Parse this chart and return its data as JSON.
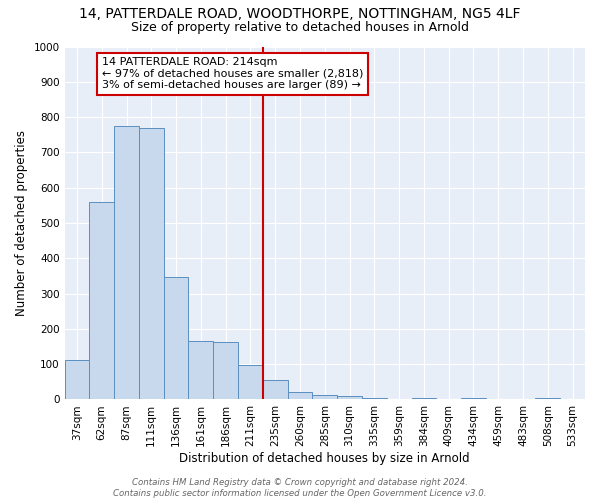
{
  "title1": "14, PATTERDALE ROAD, WOODTHORPE, NOTTINGHAM, NG5 4LF",
  "title2": "Size of property relative to detached houses in Arnold",
  "xlabel": "Distribution of detached houses by size in Arnold",
  "ylabel": "Number of detached properties",
  "categories": [
    "37sqm",
    "62sqm",
    "87sqm",
    "111sqm",
    "136sqm",
    "161sqm",
    "186sqm",
    "211sqm",
    "235sqm",
    "260sqm",
    "285sqm",
    "310sqm",
    "335sqm",
    "359sqm",
    "384sqm",
    "409sqm",
    "434sqm",
    "459sqm",
    "483sqm",
    "508sqm",
    "533sqm"
  ],
  "values": [
    113,
    560,
    775,
    770,
    347,
    165,
    163,
    98,
    55,
    20,
    14,
    10,
    4,
    0,
    5,
    0,
    5,
    0,
    0,
    5,
    0
  ],
  "bar_color": "#c8d9ed",
  "bar_edge_color": "#5a8fc0",
  "vline_color": "#cc0000",
  "annotation_text": "14 PATTERDALE ROAD: 214sqm\n← 97% of detached houses are smaller (2,818)\n3% of semi-detached houses are larger (89) →",
  "annotation_box_color": "#ffffff",
  "annotation_box_edge_color": "#cc0000",
  "ylim": [
    0,
    1000
  ],
  "yticks": [
    0,
    100,
    200,
    300,
    400,
    500,
    600,
    700,
    800,
    900,
    1000
  ],
  "background_color": "#e8eef8",
  "footer_text": "Contains HM Land Registry data © Crown copyright and database right 2024.\nContains public sector information licensed under the Open Government Licence v3.0.",
  "title1_fontsize": 10,
  "title2_fontsize": 9,
  "axis_label_fontsize": 8.5,
  "tick_fontsize": 7.5,
  "annotation_fontsize": 8
}
